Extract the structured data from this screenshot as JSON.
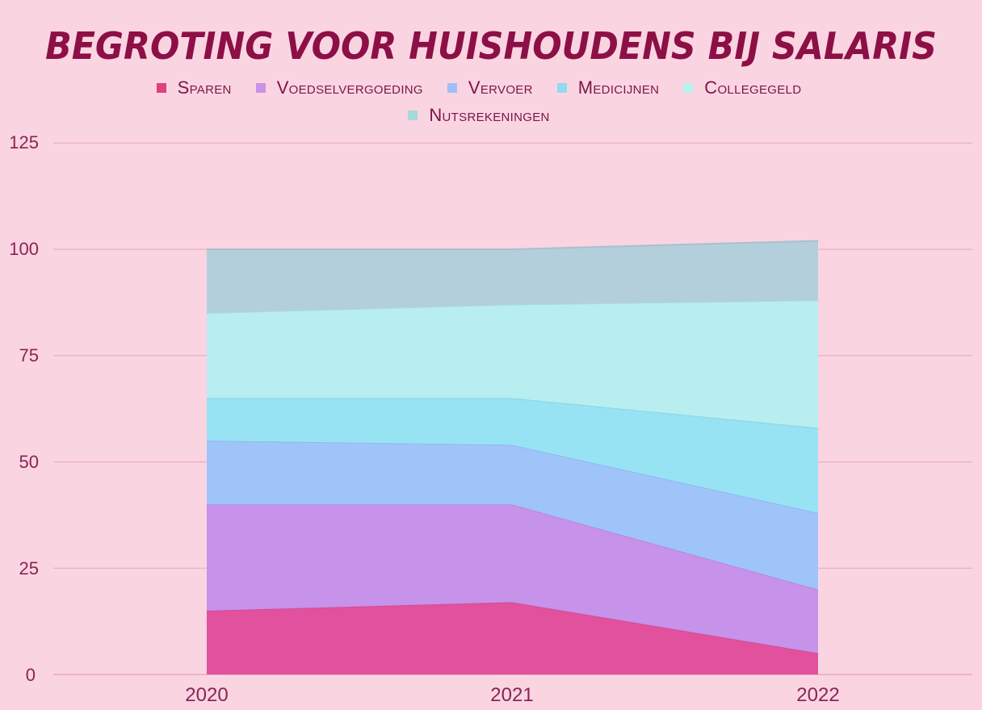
{
  "chart_data": {
    "type": "area",
    "stacked": true,
    "title": "BEGROTING VOOR HUISHOUDENS BIJ SALARIS",
    "xlabel": "",
    "ylabel": "",
    "x": [
      "2020",
      "2021",
      "2022"
    ],
    "ylim": [
      0,
      125
    ],
    "yticks": [
      0,
      25,
      50,
      75,
      100,
      125
    ],
    "grid": true,
    "legend_position": "top",
    "series": [
      {
        "name": "Sparen",
        "color": "#e2519e",
        "values": [
          15,
          17,
          5
        ]
      },
      {
        "name": "Voedselvergoeding",
        "color": "#c692ea",
        "values": [
          25,
          23,
          15
        ]
      },
      {
        "name": "Vervoer",
        "color": "#9fc4fa",
        "values": [
          15,
          14,
          18
        ]
      },
      {
        "name": "Medicijnen",
        "color": "#97e3f4",
        "values": [
          10,
          11,
          20
        ]
      },
      {
        "name": "Collegegeld",
        "color": "#b8eef0",
        "values": [
          20,
          22,
          30
        ]
      },
      {
        "name": "Nutsrekeningen",
        "color": "#b4cfdc",
        "values": [
          15,
          13,
          14
        ]
      }
    ]
  },
  "title": "BEGROTING VOOR HUISHOUDENS BIJ SALARIS",
  "legend": [
    {
      "label": "Sparen",
      "color": "#e0407f"
    },
    {
      "label": "Voedselvergoeding",
      "color": "#c992e6"
    },
    {
      "label": "Vervoer",
      "color": "#a1bff7"
    },
    {
      "label": "Medicijnen",
      "color": "#8fdcef"
    },
    {
      "label": "Collegegeld",
      "color": "#b8f2ee"
    },
    {
      "label": "Nutsrekeningen",
      "color": "#a6d9db"
    }
  ],
  "axis": {
    "y_labels": [
      "125",
      "100",
      "75",
      "50",
      "25",
      "0"
    ],
    "x_labels": [
      "2020",
      "2021",
      "2022"
    ]
  },
  "colors": {
    "background": "#fad4e1",
    "title": "#8c0f46",
    "text": "#8a2454",
    "gridline": "#eaa6be"
  }
}
